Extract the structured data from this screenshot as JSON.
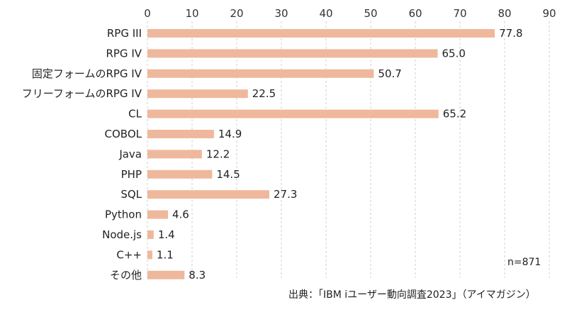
{
  "chart_data": {
    "type": "bar",
    "orientation": "horizontal",
    "categories": [
      "RPG III",
      "RPG IV",
      "固定フォームのRPG IV",
      "フリーフォームのRPG IV",
      "CL",
      "COBOL",
      "Java",
      "PHP",
      "SQL",
      "Python",
      "Node.js",
      "C++",
      "その他"
    ],
    "values": [
      77.8,
      65.0,
      50.7,
      22.5,
      65.2,
      14.9,
      12.2,
      14.5,
      27.3,
      4.6,
      1.4,
      1.1,
      8.3
    ],
    "value_labels": [
      "77.8",
      "65.0",
      "50.7",
      "22.5",
      "65.2",
      "14.9",
      "12.2",
      "14.5",
      "27.3",
      "4.6",
      "1.4",
      "1.1",
      "8.3"
    ],
    "xlim": [
      0,
      90
    ],
    "x_ticks": [
      "0",
      "10",
      "20",
      "30",
      "40",
      "50",
      "60",
      "70",
      "80",
      "90"
    ],
    "x_axis_position": "top",
    "grid": "vertical dashed",
    "bar_color": "#efb89c",
    "sample_note": "n=871",
    "source": "出典：「IBM iユーザー動向調査2023」（アイマガジン）"
  }
}
